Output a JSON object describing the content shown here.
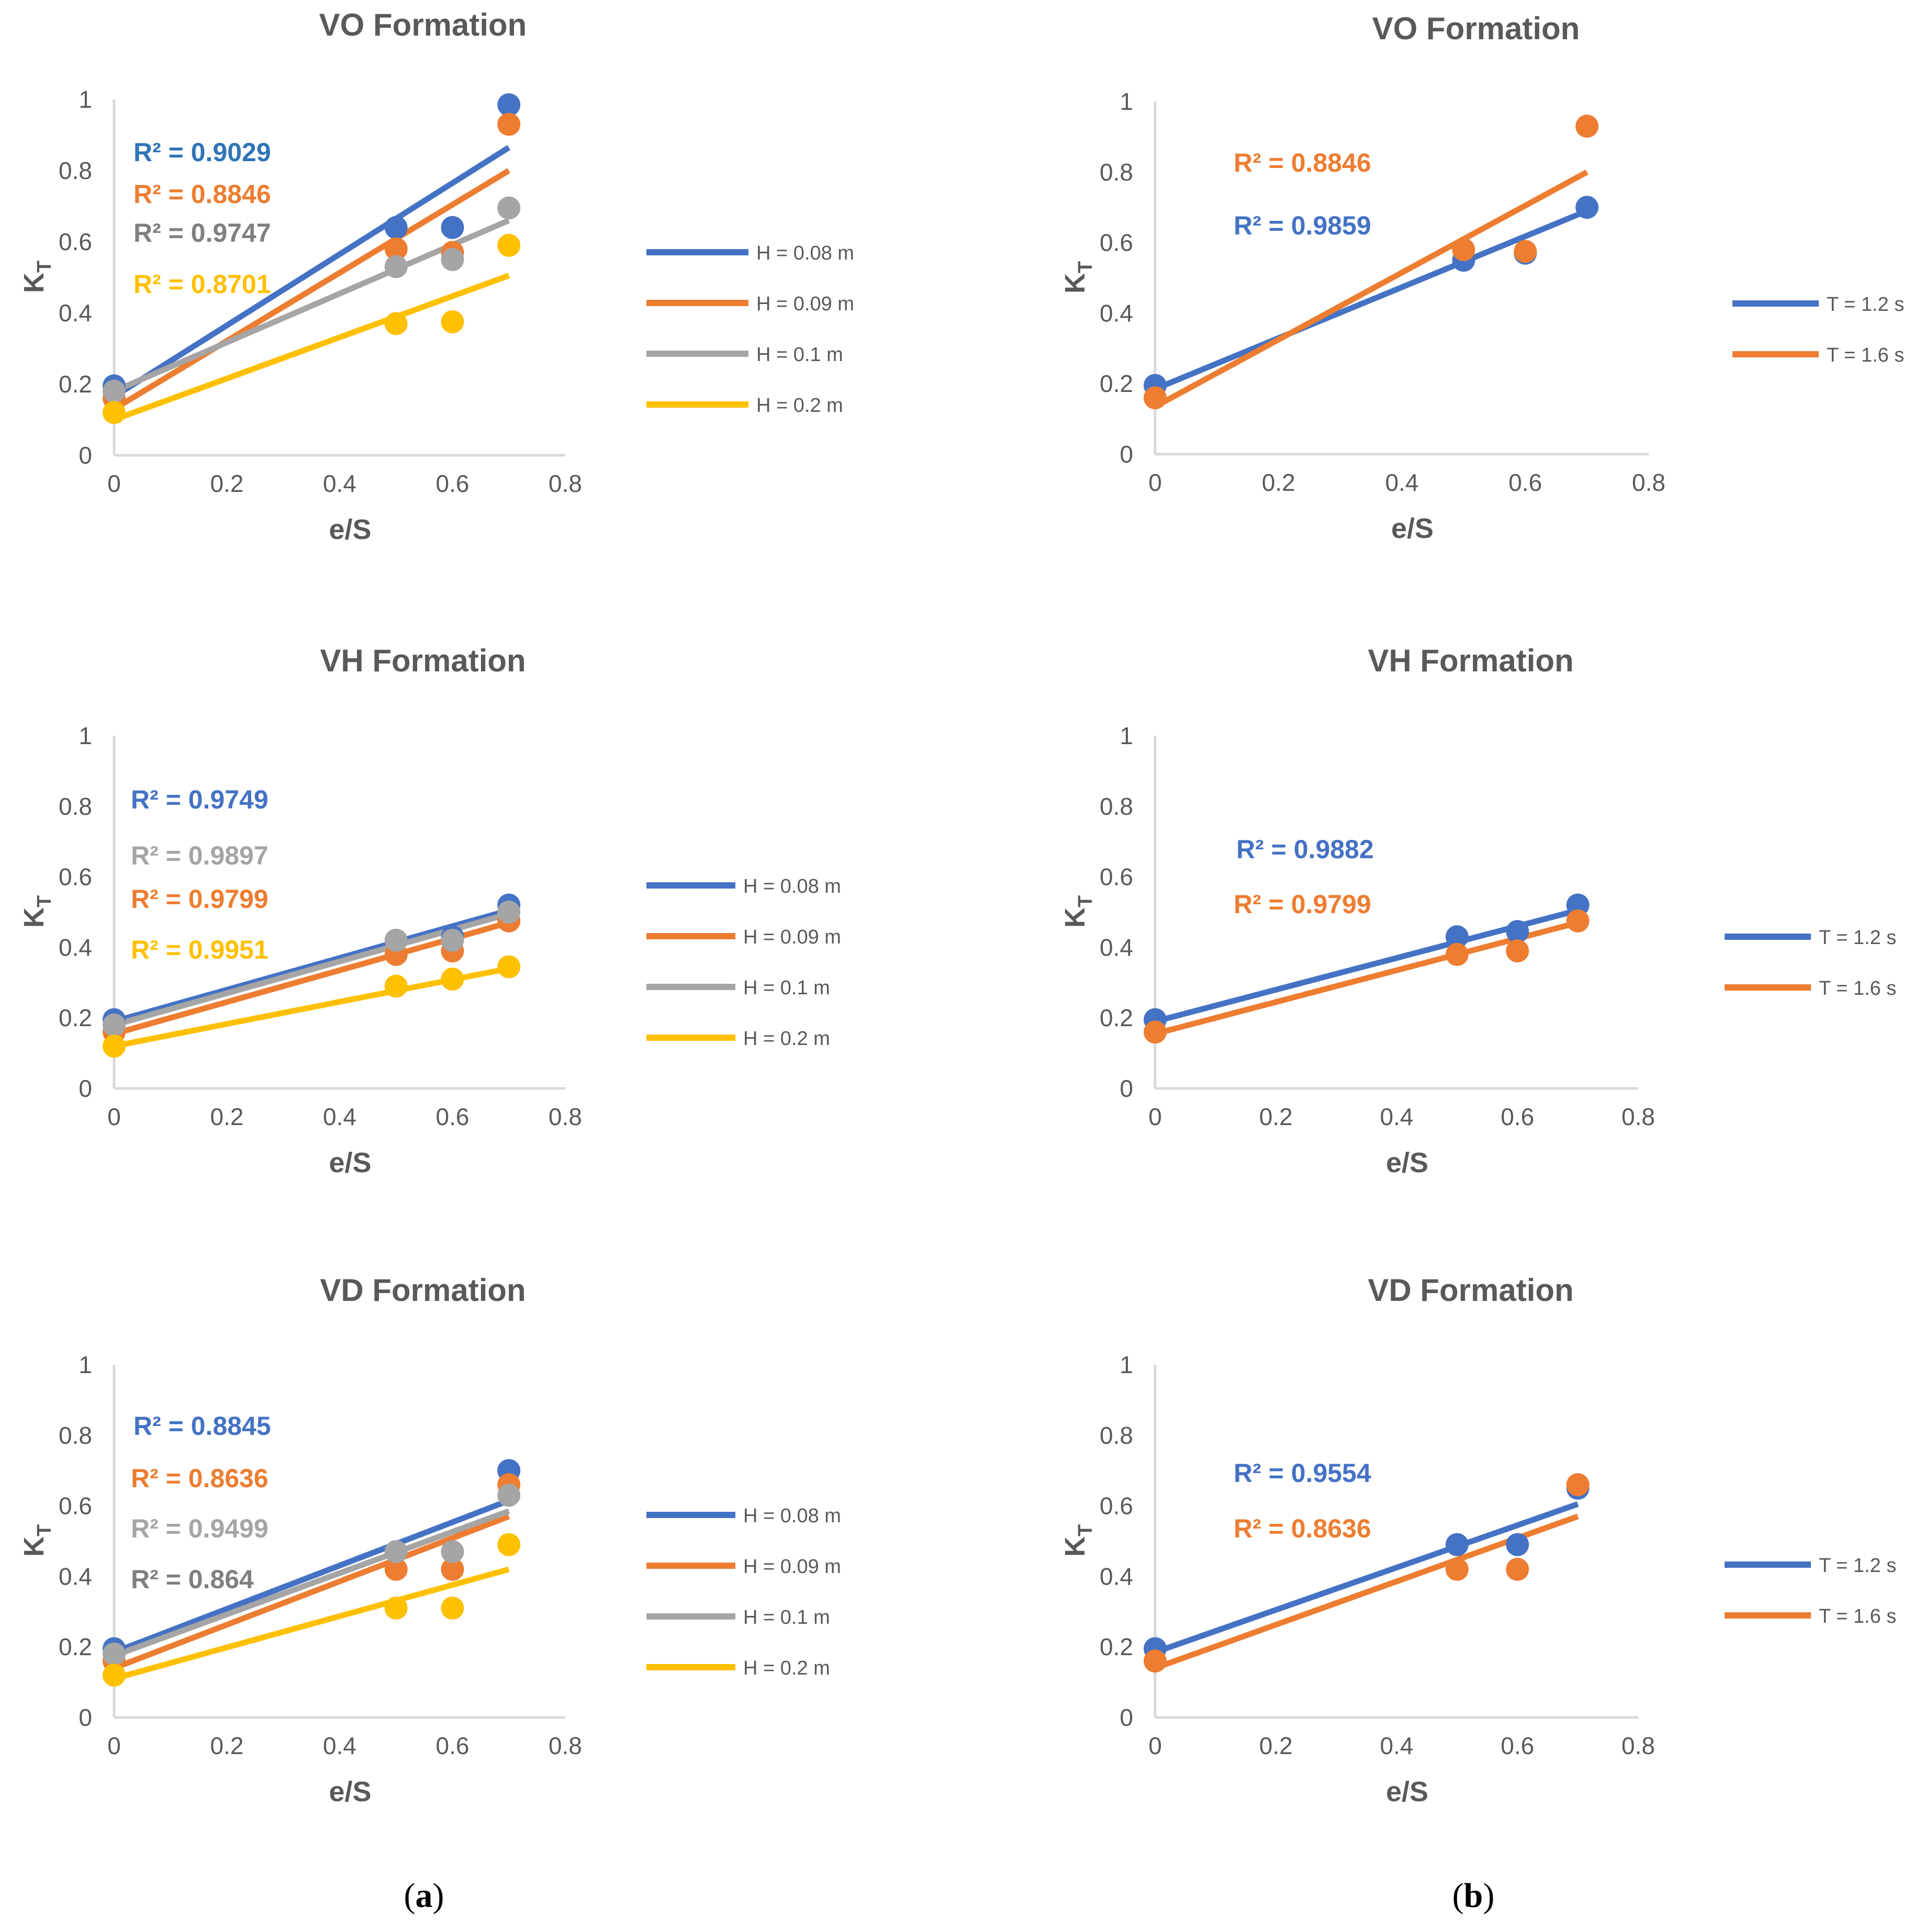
{
  "figure": {
    "panel_labels": [
      {
        "open": "(",
        "letter": "a",
        "close": ")"
      },
      {
        "open": "(",
        "letter": "b",
        "close": ")"
      }
    ]
  },
  "colors": {
    "blue": "#4472C4",
    "orange": "#ED7D31",
    "gray": "#A5A5A5",
    "yellow": "#FFC000",
    "darkgray": "#7F7F7F",
    "r2blue_dark": "#2E75B6",
    "axis": "#D9D9D9",
    "title": "#595959",
    "tick": "#595959"
  },
  "chart_data": [
    {
      "type": "scatter",
      "title": "VO Formation",
      "xlabel": "e/S",
      "ylabel": {
        "main": "K",
        "sub": "T"
      },
      "xlim": [
        0,
        0.8
      ],
      "ylim": [
        0,
        1
      ],
      "xticks": [
        "0",
        "0.2",
        "0.4",
        "0.6",
        "0.8"
      ],
      "yticks": [
        "0",
        "0.2",
        "0.4",
        "0.6",
        "0.8",
        "1"
      ],
      "x": [
        0,
        0.5,
        0.6,
        0.7
      ],
      "series": [
        {
          "name": "H = 0.08 m",
          "color": "blue",
          "points": [
            0.195,
            0.64,
            0.64,
            0.985
          ],
          "trend": [
            0.165,
            0.865
          ],
          "r2": "R² = 0.9029",
          "r2color": "r2blue_dark"
        },
        {
          "name": "H = 0.09 m",
          "color": "orange",
          "points": [
            0.16,
            0.58,
            0.57,
            0.93
          ],
          "trend": [
            0.13,
            0.8
          ],
          "r2": "R² = 0.8846",
          "r2color": "orange"
        },
        {
          "name": "H = 0.1 m",
          "color": "gray",
          "points": [
            0.18,
            0.53,
            0.55,
            0.695
          ],
          "trend": [
            0.18,
            0.66
          ],
          "r2": "R² = 0.9747",
          "r2color": "darkgray"
        },
        {
          "name": "H = 0.2 m",
          "color": "yellow",
          "points": [
            0.12,
            0.37,
            0.375,
            0.59
          ],
          "trend": [
            0.1,
            0.505
          ],
          "r2": "R² = 0.8701",
          "r2color": "yellow"
        }
      ]
    },
    {
      "type": "scatter",
      "title": "VO Formation",
      "xlabel": "e/S",
      "ylabel": {
        "main": "K",
        "sub": "T"
      },
      "xlim": [
        0,
        0.8
      ],
      "ylim": [
        0,
        1
      ],
      "xticks": [
        "0",
        "0.2",
        "0.4",
        "0.6",
        "0.8"
      ],
      "yticks": [
        "0",
        "0.2",
        "0.4",
        "0.6",
        "0.8",
        "1"
      ],
      "x": [
        0,
        0.5,
        0.6,
        0.7
      ],
      "series": [
        {
          "name": "T = 1.2 s",
          "color": "blue",
          "points": [
            0.195,
            0.55,
            0.57,
            0.7
          ],
          "trend": [
            0.185,
            0.69
          ],
          "r2": "R² = 0.9859",
          "r2color": "blue"
        },
        {
          "name": "T = 1.6 s",
          "color": "orange",
          "points": [
            0.16,
            0.58,
            0.575,
            0.93
          ],
          "trend": [
            0.135,
            0.8
          ],
          "r2": "R² = 0.8846",
          "r2color": "orange"
        }
      ]
    },
    {
      "type": "scatter",
      "title": "VH Formation",
      "xlabel": "e/S",
      "ylabel": {
        "main": "K",
        "sub": "T"
      },
      "xlim": [
        0,
        0.8
      ],
      "ylim": [
        0,
        1
      ],
      "xticks": [
        "0",
        "0.2",
        "0.4",
        "0.6",
        "0.8"
      ],
      "yticks": [
        "0",
        "0.2",
        "0.4",
        "0.6",
        "0.8",
        "1"
      ],
      "x": [
        0,
        0.5,
        0.6,
        0.7
      ],
      "series": [
        {
          "name": "H = 0.08 m",
          "color": "blue",
          "points": [
            0.195,
            0.42,
            0.43,
            0.52
          ],
          "trend": [
            0.19,
            0.505
          ],
          "r2": "R² = 0.9749",
          "r2color": "blue"
        },
        {
          "name": "H = 0.09 m",
          "color": "orange",
          "points": [
            0.16,
            0.38,
            0.39,
            0.475
          ],
          "trend": [
            0.155,
            0.47
          ],
          "r2": "R² = 0.9799",
          "r2color": "orange"
        },
        {
          "name": "H = 0.1 m",
          "color": "gray",
          "points": [
            0.18,
            0.42,
            0.42,
            0.5
          ],
          "trend": [
            0.18,
            0.495
          ],
          "r2": "R² = 0.9897",
          "r2color": "gray"
        },
        {
          "name": "H = 0.2 m",
          "color": "yellow",
          "points": [
            0.12,
            0.29,
            0.31,
            0.345
          ],
          "trend": [
            0.12,
            0.34
          ],
          "r2": "R² = 0.9951",
          "r2color": "yellow"
        }
      ]
    },
    {
      "type": "scatter",
      "title": "VH Formation",
      "xlabel": "e/S",
      "ylabel": {
        "main": "K",
        "sub": "T"
      },
      "xlim": [
        0,
        0.8
      ],
      "ylim": [
        0,
        1
      ],
      "xticks": [
        "0",
        "0.2",
        "0.4",
        "0.6",
        "0.8"
      ],
      "yticks": [
        "0",
        "0.2",
        "0.4",
        "0.6",
        "0.8",
        "1"
      ],
      "x": [
        0,
        0.5,
        0.6,
        0.7
      ],
      "series": [
        {
          "name": "T = 1.2 s",
          "color": "blue",
          "points": [
            0.195,
            0.43,
            0.445,
            0.52
          ],
          "trend": [
            0.19,
            0.505
          ],
          "r2": "R² = 0.9882",
          "r2color": "blue"
        },
        {
          "name": "T = 1.6 s",
          "color": "orange",
          "points": [
            0.16,
            0.38,
            0.39,
            0.475
          ],
          "trend": [
            0.155,
            0.47
          ],
          "r2": "R² = 0.9799",
          "r2color": "orange"
        }
      ]
    },
    {
      "type": "scatter",
      "title": "VD Formation",
      "xlabel": "e/S",
      "ylabel": {
        "main": "K",
        "sub": "T"
      },
      "xlim": [
        0,
        0.8
      ],
      "ylim": [
        0,
        1
      ],
      "xticks": [
        "0",
        "0.2",
        "0.4",
        "0.6",
        "0.8"
      ],
      "yticks": [
        "0",
        "0.2",
        "0.4",
        "0.6",
        "0.8",
        "1"
      ],
      "x": [
        0,
        0.5,
        0.6,
        0.7
      ],
      "series": [
        {
          "name": "H = 0.08 m",
          "color": "blue",
          "points": [
            0.195,
            0.47,
            0.47,
            0.7
          ],
          "trend": [
            0.185,
            0.615
          ],
          "r2": "R² = 0.8845",
          "r2color": "blue"
        },
        {
          "name": "H = 0.09 m",
          "color": "orange",
          "points": [
            0.16,
            0.42,
            0.42,
            0.66
          ],
          "trend": [
            0.14,
            0.57
          ],
          "r2": "R² = 0.8636",
          "r2color": "orange"
        },
        {
          "name": "H = 0.1 m",
          "color": "gray",
          "points": [
            0.18,
            0.47,
            0.47,
            0.63
          ],
          "trend": [
            0.175,
            0.585
          ],
          "r2": "R² = 0.9499",
          "r2color": "gray"
        },
        {
          "name": "H = 0.2 m",
          "color": "yellow",
          "points": [
            0.12,
            0.31,
            0.31,
            0.49
          ],
          "trend": [
            0.11,
            0.42
          ],
          "r2": "R² = 0.864",
          "r2color": "darkgray"
        }
      ]
    },
    {
      "type": "scatter",
      "title": "VD Formation",
      "xlabel": "e/S",
      "ylabel": {
        "main": "K",
        "sub": "T"
      },
      "xlim": [
        0,
        0.8
      ],
      "ylim": [
        0,
        1
      ],
      "xticks": [
        "0",
        "0.2",
        "0.4",
        "0.6",
        "0.8"
      ],
      "yticks": [
        "0",
        "0.2",
        "0.4",
        "0.6",
        "0.8",
        "1"
      ],
      "x": [
        0,
        0.5,
        0.6,
        0.7
      ],
      "series": [
        {
          "name": "T = 1.2 s",
          "color": "blue",
          "points": [
            0.195,
            0.49,
            0.49,
            0.65
          ],
          "trend": [
            0.185,
            0.605
          ],
          "r2": "R² = 0.9554",
          "r2color": "blue"
        },
        {
          "name": "T = 1.6 s",
          "color": "orange",
          "points": [
            0.16,
            0.42,
            0.42,
            0.66
          ],
          "trend": [
            0.14,
            0.57
          ],
          "r2": "R² = 0.8636",
          "r2color": "orange"
        }
      ]
    }
  ]
}
